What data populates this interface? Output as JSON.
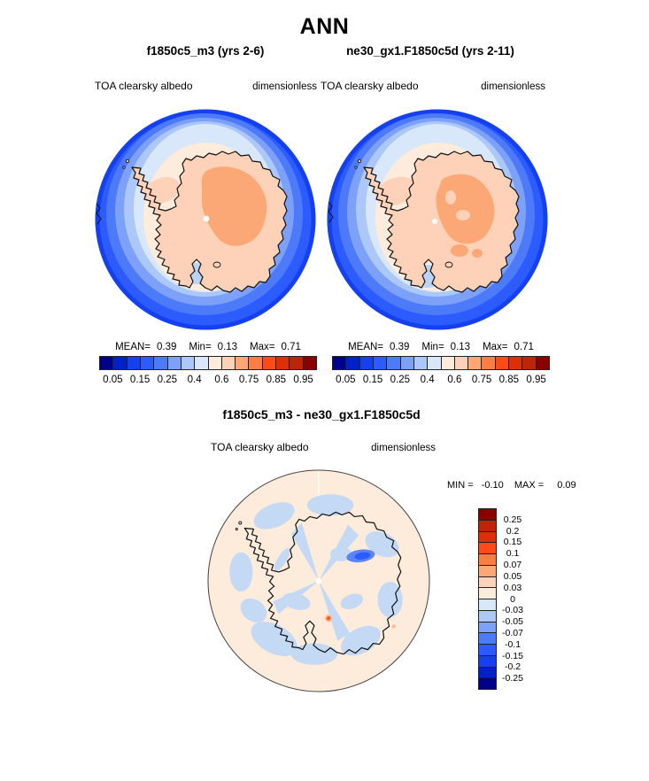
{
  "title": "ANN",
  "top_row": {
    "panels": [
      {
        "subtitle": "f1850c5_m3 (yrs 2-6)",
        "var_label": "TOA clearsky albedo",
        "units_label": "dimensionless",
        "stats": {
          "mean_label": "MEAN=",
          "mean": "0.39",
          "min_label": "Min=",
          "min": "0.13",
          "max_label": "Max=",
          "max": "0.71"
        }
      },
      {
        "subtitle": "ne30_gx1.F1850c5d (yrs 2-11)",
        "var_label": "TOA clearsky albedo",
        "units_label": "dimensionless",
        "stats": {
          "mean_label": "MEAN=",
          "mean": "0.39",
          "min_label": "Min=",
          "min": "0.13",
          "max_label": "Max=",
          "max": "0.71"
        }
      }
    ],
    "colorbar": {
      "tick_labels": [
        "0.05",
        "0.15",
        "0.25",
        "0.4",
        "0.6",
        "0.75",
        "0.85",
        "0.95"
      ],
      "colors": [
        "#00008b",
        "#0021c8",
        "#1540f0",
        "#2c5cff",
        "#4d7af8",
        "#7da1f8",
        "#abc8f8",
        "#d9e7fa",
        "#fdecdb",
        "#fdd2b8",
        "#fca876",
        "#fd7d42",
        "#fd4a16",
        "#dd2f08",
        "#bd2408",
        "#8b0000"
      ]
    }
  },
  "diff": {
    "title": "f1850c5_m3 - ne30_gx1.F1850c5d",
    "var_label": "TOA clearsky albedo",
    "units_label": "dimensionless",
    "stats": {
      "min_label": "MIN =",
      "min": "-0.10",
      "max_label": "MAX =",
      "max": "0.09"
    },
    "colorbar": {
      "tick_labels": [
        "0.25",
        "0.2",
        "0.15",
        "0.1",
        "0.07",
        "0.05",
        "0.03",
        "0",
        "-0.03",
        "-0.05",
        "-0.07",
        "-0.1",
        "-0.15",
        "-0.2",
        "-0.25"
      ],
      "colors": [
        "#8b0000",
        "#bd2408",
        "#dd2f08",
        "#fd4a16",
        "#fd7d42",
        "#fca876",
        "#fdd2b8",
        "#fdecdb",
        "#d9e7fa",
        "#abc8f8",
        "#7da1f8",
        "#4d7af8",
        "#2c5cff",
        "#1540f0",
        "#0021c8",
        "#00008b"
      ]
    }
  },
  "map_colors": {
    "ocean_deep": "#2c5cff",
    "ocean_rim": "#1540f0",
    "ring1": "#4d7af8",
    "ring2": "#7da1f8",
    "ring3": "#abc8f8",
    "ring4": "#d9e7fa",
    "shelf_cream": "#fdecdb",
    "continent": "#fdd2b8",
    "plateau": "#fca876",
    "ross_patch": "#b9d4f8",
    "diff_bg": "#fdecdb",
    "diff_patch": "#c3d9f4",
    "diff_blob": "#5b84f4",
    "diff_blob_core": "#2c5cff",
    "diff_warm_halo": "#fcb791",
    "diff_warm_spot": "#fd5a20",
    "outline": "#111111"
  },
  "chart_data": [
    {
      "type": "heatmap",
      "title": "f1850c5_m3 (yrs 2-6)",
      "season": "ANN",
      "variable": "TOA clearsky albedo",
      "units": "dimensionless",
      "region": "Antarctica, south polar stereographic projection",
      "stats": {
        "mean": 0.39,
        "min": 0.13,
        "max": 0.71
      },
      "contour_boundaries": [
        0.05,
        0.1,
        0.15,
        0.2,
        0.25,
        0.3,
        0.4,
        0.5,
        0.6,
        0.7,
        0.75,
        0.8,
        0.85,
        0.9,
        0.95
      ],
      "labeled_ticks": [
        0.05,
        0.15,
        0.25,
        0.4,
        0.6,
        0.75,
        0.85,
        0.95
      ],
      "palette": [
        "#00008b",
        "#0021c8",
        "#1540f0",
        "#2c5cff",
        "#4d7af8",
        "#7da1f8",
        "#abc8f8",
        "#d9e7fa",
        "#fdecdb",
        "#fdd2b8",
        "#fca876",
        "#fd7d42",
        "#fd4a16",
        "#dd2f08",
        "#bd2408",
        "#8b0000"
      ],
      "legend_position": "below"
    },
    {
      "type": "heatmap",
      "title": "ne30_gx1.F1850c5d (yrs 2-11)",
      "season": "ANN",
      "variable": "TOA clearsky albedo",
      "units": "dimensionless",
      "region": "Antarctica, south polar stereographic projection",
      "stats": {
        "mean": 0.39,
        "min": 0.13,
        "max": 0.71
      },
      "contour_boundaries": [
        0.05,
        0.1,
        0.15,
        0.2,
        0.25,
        0.3,
        0.4,
        0.5,
        0.6,
        0.7,
        0.75,
        0.8,
        0.85,
        0.9,
        0.95
      ],
      "labeled_ticks": [
        0.05,
        0.15,
        0.25,
        0.4,
        0.6,
        0.75,
        0.85,
        0.95
      ],
      "palette": [
        "#00008b",
        "#0021c8",
        "#1540f0",
        "#2c5cff",
        "#4d7af8",
        "#7da1f8",
        "#abc8f8",
        "#d9e7fa",
        "#fdecdb",
        "#fdd2b8",
        "#fca876",
        "#fd7d42",
        "#fd4a16",
        "#dd2f08",
        "#bd2408",
        "#8b0000"
      ],
      "legend_position": "below"
    },
    {
      "type": "heatmap",
      "title": "f1850c5_m3 - ne30_gx1.F1850c5d",
      "season": "ANN",
      "variable": "TOA clearsky albedo difference",
      "units": "dimensionless",
      "region": "Antarctica, south polar stereographic projection",
      "stats": {
        "min": -0.1,
        "max": 0.09
      },
      "contour_boundaries": [
        -0.25,
        -0.2,
        -0.15,
        -0.1,
        -0.07,
        -0.05,
        -0.03,
        0,
        0.03,
        0.05,
        0.07,
        0.1,
        0.15,
        0.2,
        0.25
      ],
      "palette_top_to_bottom": [
        "#8b0000",
        "#bd2408",
        "#dd2f08",
        "#fd4a16",
        "#fd7d42",
        "#fca876",
        "#fdd2b8",
        "#fdecdb",
        "#d9e7fa",
        "#abc8f8",
        "#7da1f8",
        "#4d7af8",
        "#2c5cff",
        "#1540f0",
        "#0021c8",
        "#00008b"
      ],
      "legend_position": "right"
    }
  ]
}
